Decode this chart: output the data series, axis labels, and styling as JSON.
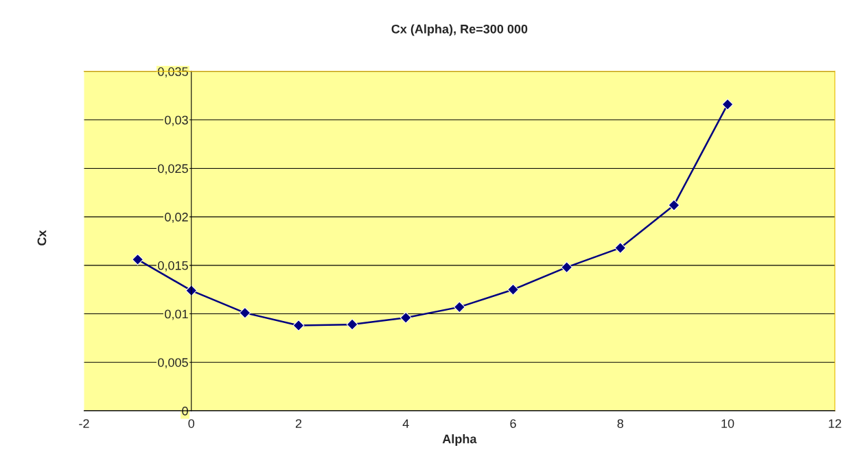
{
  "chart_data": {
    "type": "line",
    "title": "Cx (Alpha), Re=300 000",
    "xlabel": "Alpha",
    "ylabel": "Cx",
    "x": [
      -1,
      0,
      1,
      2,
      3,
      4,
      5,
      6,
      7,
      8,
      9,
      10
    ],
    "series": [
      {
        "color": "#000080",
        "values": [
          0.0156,
          0.0124,
          0.0101,
          0.0088,
          0.0089,
          0.0096,
          0.0107,
          0.0125,
          0.0148,
          0.0168,
          0.0212,
          0.0316
        ]
      }
    ],
    "xlim": [
      -2,
      12
    ],
    "xticks": [
      -2,
      0,
      2,
      4,
      6,
      8,
      10,
      12
    ],
    "ylim": [
      0,
      0.035
    ],
    "yticks": [
      {
        "value": 0,
        "label": "0"
      },
      {
        "value": 0.005,
        "label": "0,005"
      },
      {
        "value": 0.01,
        "label": "0,01"
      },
      {
        "value": 0.015,
        "label": "0,015"
      },
      {
        "value": 0.02,
        "label": "0,02"
      },
      {
        "value": 0.025,
        "label": "0,025"
      },
      {
        "value": 0.03,
        "label": "0,03"
      },
      {
        "value": 0.035,
        "label": "0,035"
      }
    ],
    "grid": "y",
    "marker": "diamond",
    "line_style": "solid",
    "legend": false
  }
}
